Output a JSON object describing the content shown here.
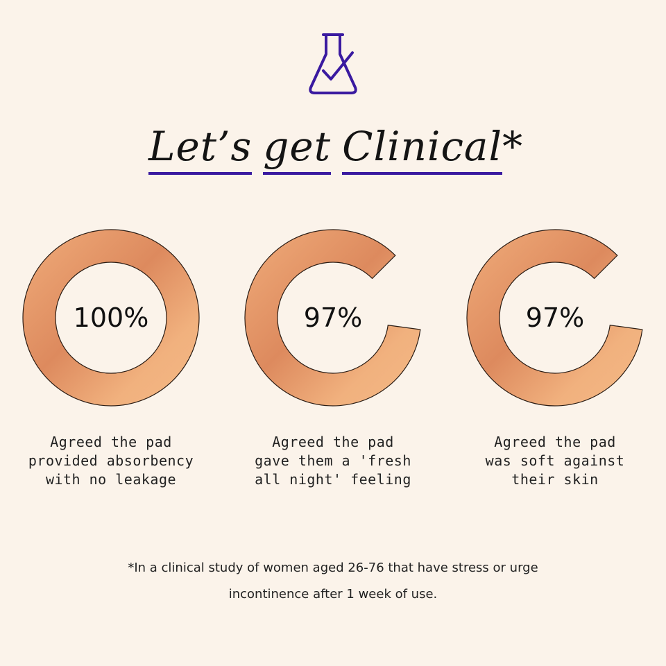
{
  "header": {
    "icon": "flask-check-icon",
    "icon_color": "#3a1aa0",
    "title_words": [
      "Let’s",
      "get",
      "Clinical"
    ],
    "title_suffix": "*",
    "underline_color": "#3a1aa0"
  },
  "chart_data": {
    "type": "pie",
    "style": "donut",
    "categories": [
      "Agreed the pad provided absorbency with no leakage",
      "Agreed the pad gave them a 'fresh all night' feeling",
      "Agreed the pad was soft against their skin"
    ],
    "values": [
      100,
      97,
      97
    ],
    "labels": [
      "100%",
      "97%",
      "97%"
    ],
    "ring_color": "#eeaa78"
  },
  "stats": [
    {
      "value": "100%",
      "caption_lines": [
        "Agreed the pad",
        "provided absorbency",
        "with no leakage"
      ]
    },
    {
      "value": "97%",
      "caption_lines": [
        "Agreed the pad",
        "gave them a 'fresh",
        "all night' feeling"
      ]
    },
    {
      "value": "97%",
      "caption_lines": [
        "Agreed the pad",
        "was soft against",
        "their skin"
      ]
    }
  ],
  "footnote": {
    "lines": [
      "*In a clinical study of women aged 26-76 that have stress or urge",
      "incontinence after 1 week of use."
    ]
  }
}
